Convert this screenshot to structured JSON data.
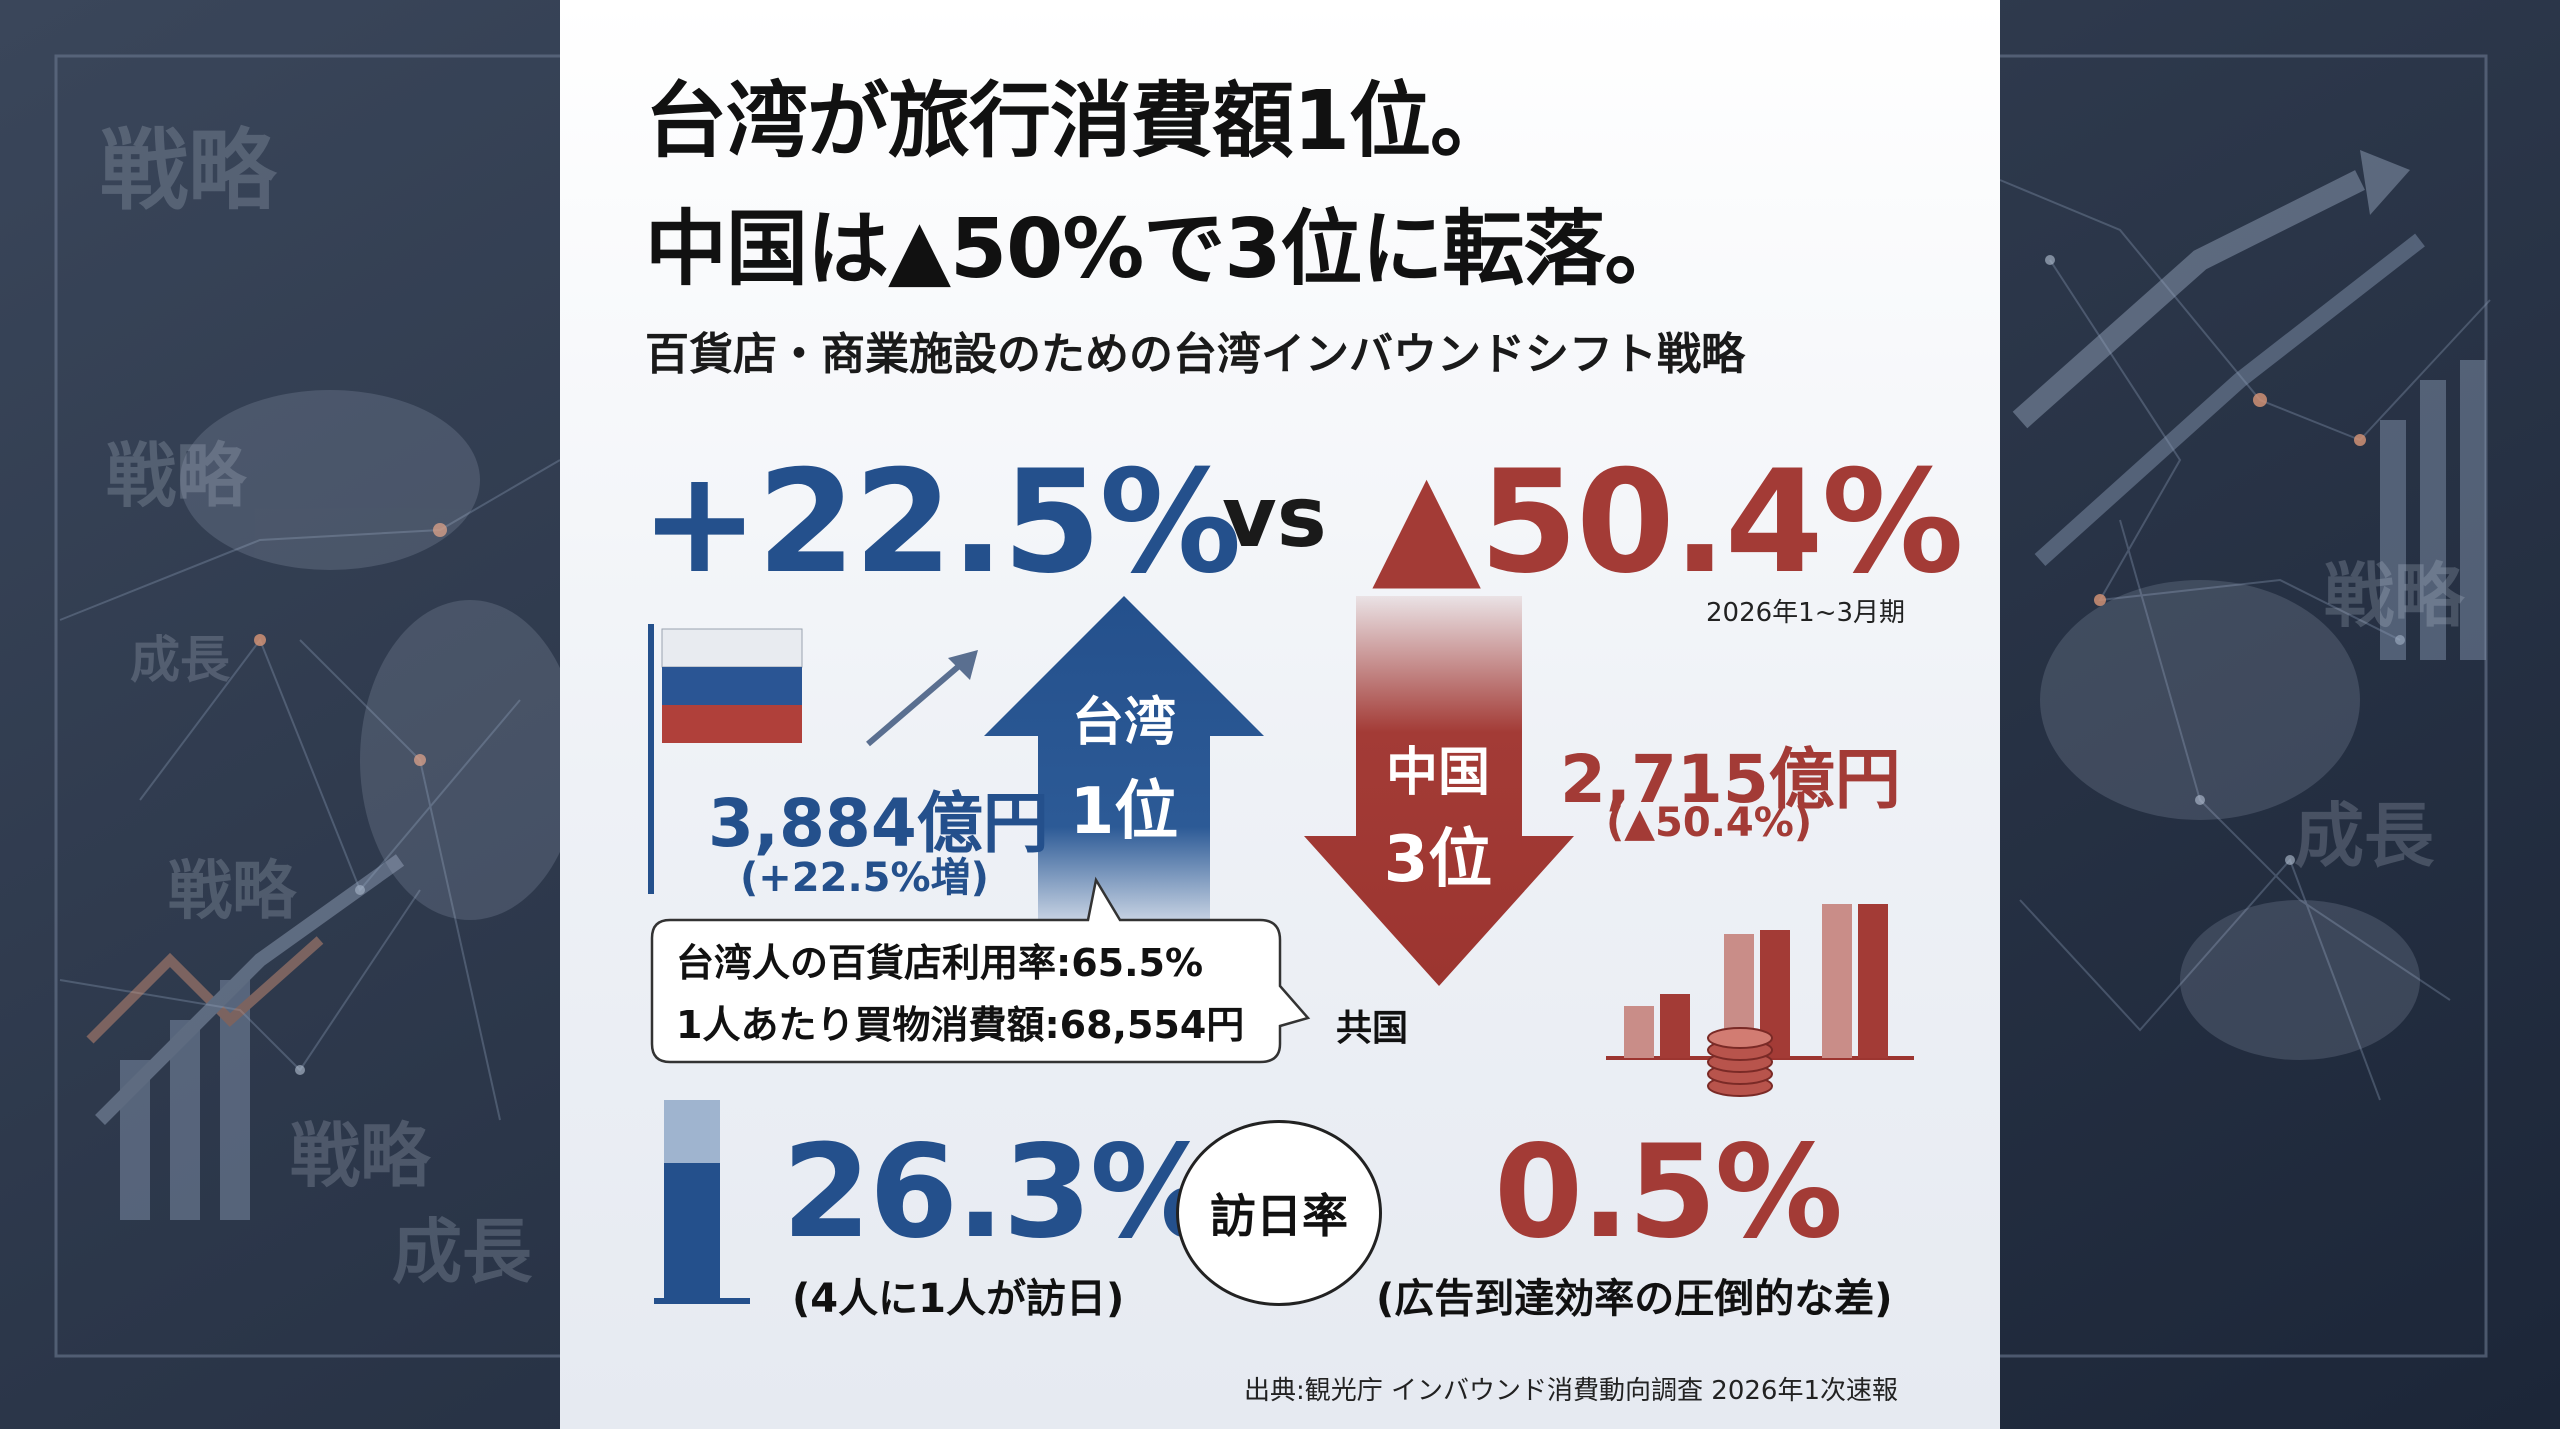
{
  "background_words": [
    "戦略",
    "戦略",
    "成長",
    "戦略",
    "戦略",
    "成長",
    "戦略",
    "成長"
  ],
  "headline": {
    "line1": "台湾が旅行消費額1位。",
    "line2": "中国は▲50%で3位に転落。"
  },
  "subtitle": "百貨店・商業施設のための台湾インバウンドシフト戦略",
  "comparison": {
    "taiwan_change": "+22.5%",
    "vs": "vs",
    "china_change": "▲50.4%",
    "period": "2026年1~3月期"
  },
  "taiwan": {
    "arrow_label_1": "台湾",
    "arrow_label_2": "1位",
    "amount": "3,884億円",
    "change": "(+22.5%増)"
  },
  "china": {
    "arrow_label_1": "中国",
    "arrow_label_2": "3位",
    "amount": "2,715億円",
    "change": "(▲50.4%)"
  },
  "callout": {
    "line1": "台湾人の百貨店利用率:65.5%",
    "line2": "1人あたり買物消費額:68,554円",
    "side_note": "共国"
  },
  "visit_rate": {
    "label": "訪日率",
    "taiwan_value": "26.3%",
    "taiwan_note": "(4人に1人が訪日)",
    "taiwan_fill_fraction": 0.7,
    "china_value": "0.5%",
    "china_note": "(広告到達効率の圧倒的な差)"
  },
  "source": "出典:観光庁 インバウンド消費動向調査 2026年1次速報",
  "colors": {
    "blue": "#24508c",
    "red": "#a33b36",
    "background": "#2a3548"
  }
}
